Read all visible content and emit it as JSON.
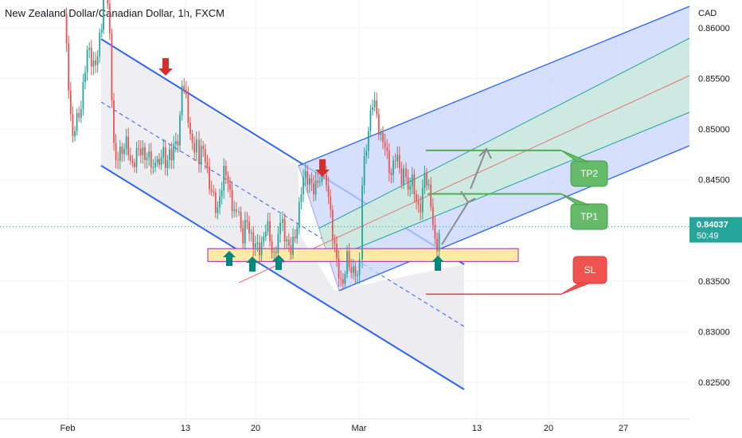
{
  "header": {
    "symbol_title": "New Zealand Dollar/Canadian Dollar, 1h, FXCM",
    "currency": "CAD"
  },
  "price_axis": {
    "ticks": [
      "0.86000",
      "0.85500",
      "0.85000",
      "0.84500",
      "0.84000",
      "0.83500",
      "0.83000",
      "0.82500"
    ],
    "tick_values": [
      0.86,
      0.855,
      0.85,
      0.845,
      0.84,
      0.835,
      0.83,
      0.825
    ],
    "current_price": "0.84037",
    "countdown": "50:49",
    "current_price_value": 0.84037
  },
  "time_axis": {
    "labels": [
      "Feb",
      "13",
      "20",
      "Mar",
      "13",
      "20",
      "27"
    ]
  },
  "annotations": {
    "tp2_label": "TP2",
    "tp1_label": "TP1",
    "sl_label": "SL",
    "tp2_price": 0.8479,
    "tp1_price": 0.8436,
    "sl_price": 0.8337,
    "support_zone_top": 0.8382,
    "support_zone_bottom": 0.8374
  },
  "colors": {
    "bull_candle": "#26a69a",
    "bear_candle": "#ef5350",
    "channel_line": "#2962ff",
    "pitchfork_fill": "#c8d4fb",
    "support_zone": "#ffe9a6",
    "tp_line": "#4caf50",
    "sl_line": "#e53935",
    "price_badge": "#26a69a",
    "signal_up": "#00897b",
    "signal_down": "#d32f2f"
  },
  "chart_data": {
    "type": "candlestick",
    "symbol": "NZDCAD",
    "timeframe": "1h",
    "ylim": [
      0.8215,
      0.8635
    ],
    "price_path": [
      [
        0.861,
        0.849,
        0.852,
        0.858,
        0.856,
        0.862
      ],
      [
        0.866,
        0.861,
        0.846,
        0.848,
        0.8485,
        0.8465,
        0.8475,
        0.848,
        0.847,
        0.8462,
        0.8485
      ],
      [
        0.8468,
        0.8475,
        0.8465,
        0.848,
        0.8472,
        0.8485,
        0.8495,
        0.8548,
        0.853,
        0.851,
        0.8485,
        0.8478,
        0.8488
      ],
      [
        0.8475,
        0.8482,
        0.8462,
        0.8448,
        0.8432,
        0.8412,
        0.8442,
        0.8458,
        0.8448,
        0.8432,
        0.8418,
        0.8402
      ],
      [
        0.8418,
        0.8392,
        0.8408,
        0.8398,
        0.8385,
        0.8378,
        0.8392,
        0.8405,
        0.8388,
        0.8376,
        0.8392,
        0.8412
      ],
      [
        0.8405,
        0.8392,
        0.8376,
        0.8392,
        0.8418,
        0.8445,
        0.8458,
        0.8448,
        0.8435,
        0.8455,
        0.8452,
        0.8462
      ],
      [
        0.8445,
        0.8425,
        0.8392,
        0.8365,
        0.8348,
        0.8355,
        0.8372,
        0.8358,
        0.8368,
        0.8345,
        0.8398
      ],
      [
        0.8445,
        0.8478,
        0.8512,
        0.8528,
        0.8512,
        0.8496,
        0.8486,
        0.8468,
        0.8458,
        0.8472,
        0.8465,
        0.8452,
        0.8465
      ],
      [
        0.8448,
        0.8435,
        0.8452,
        0.8445,
        0.8428,
        0.8412,
        0.8435,
        0.8462,
        0.8448,
        0.8425,
        0.8405,
        0.8382,
        0.8395,
        0.8402
      ]
    ]
  }
}
